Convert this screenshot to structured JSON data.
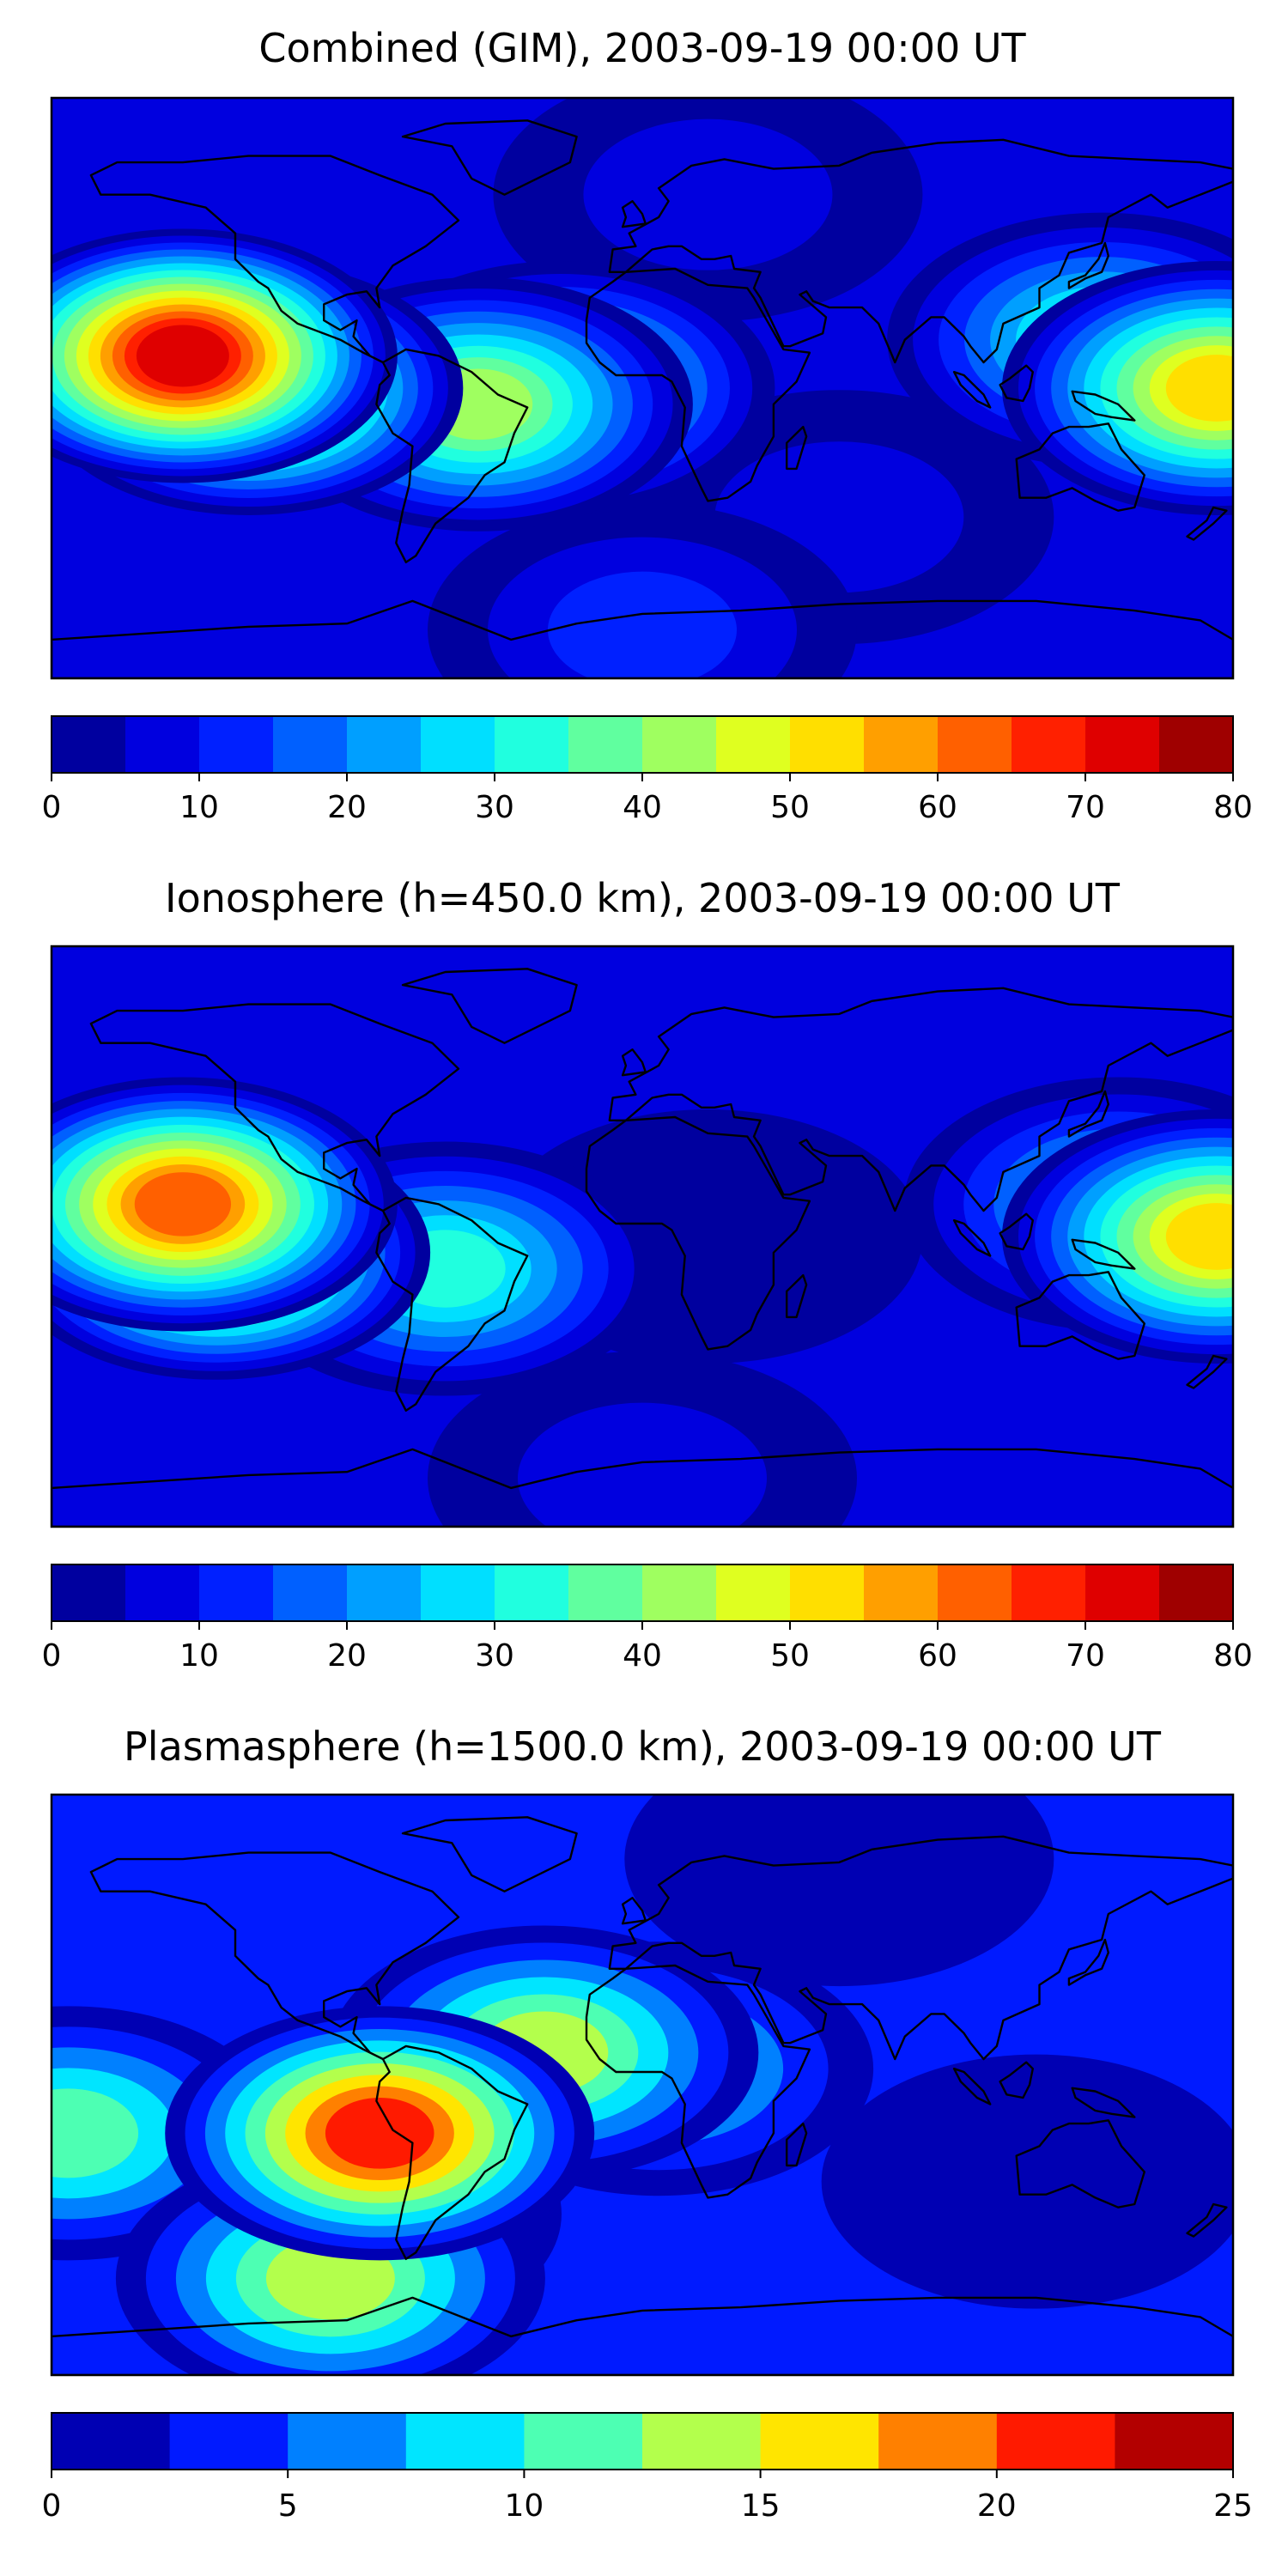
{
  "chart_data": [
    {
      "type": "heatmap",
      "title": "Combined (GIM), 2003-09-19 00:00 UT",
      "projection": "plate carree world map with coastlines",
      "lon_range": [
        -180,
        180
      ],
      "lat_range": [
        -90,
        90
      ],
      "colorbar": {
        "range": [
          0,
          80
        ],
        "levels": [
          0,
          5,
          10,
          15,
          20,
          25,
          30,
          35,
          40,
          45,
          50,
          55,
          60,
          65,
          70,
          75,
          80
        ],
        "tick_labels": [
          "0",
          "10",
          "20",
          "30",
          "40",
          "50",
          "60",
          "70",
          "80"
        ],
        "tick_values": [
          0,
          10,
          20,
          30,
          40,
          50,
          60,
          70,
          80
        ]
      },
      "features": [
        {
          "lon": -140,
          "lat": 10,
          "value": 72,
          "note": "peak over east Pacific"
        },
        {
          "lon": -120,
          "lat": 0,
          "value": 55
        },
        {
          "lon": -50,
          "lat": -5,
          "value": 42
        },
        {
          "lon": -25,
          "lat": 0,
          "value": 38
        },
        {
          "lon": 175,
          "lat": 0,
          "value": 52
        },
        {
          "lon": 140,
          "lat": 15,
          "value": 32
        },
        {
          "lon": 20,
          "lat": 60,
          "value": 7
        },
        {
          "lon": 60,
          "lat": -40,
          "value": 8
        },
        {
          "lon": 0,
          "lat": -75,
          "value": 12
        }
      ]
    },
    {
      "type": "heatmap",
      "title": "Ionosphere  (h=450.0 km), 2003-09-19 00:00 UT",
      "projection": "plate carree world map with coastlines",
      "lon_range": [
        -180,
        180
      ],
      "lat_range": [
        -90,
        90
      ],
      "colorbar": {
        "range": [
          0,
          80
        ],
        "levels": [
          0,
          5,
          10,
          15,
          20,
          25,
          30,
          35,
          40,
          45,
          50,
          55,
          60,
          65,
          70,
          75,
          80
        ],
        "tick_labels": [
          "0",
          "10",
          "20",
          "30",
          "40",
          "50",
          "60",
          "70",
          "80"
        ],
        "tick_values": [
          0,
          10,
          20,
          30,
          40,
          50,
          60,
          70,
          80
        ]
      },
      "features": [
        {
          "lon": -140,
          "lat": 10,
          "value": 62,
          "note": "peak over east Pacific"
        },
        {
          "lon": -130,
          "lat": -5,
          "value": 55
        },
        {
          "lon": -60,
          "lat": -10,
          "value": 30
        },
        {
          "lon": 175,
          "lat": 0,
          "value": 50
        },
        {
          "lon": 145,
          "lat": 10,
          "value": 28
        },
        {
          "lon": 20,
          "lat": 0,
          "value": 4
        },
        {
          "lon": 0,
          "lat": -75,
          "value": 6
        }
      ]
    },
    {
      "type": "heatmap",
      "title": "Plasmasphere (h=1500.0 km), 2003-09-19 00:00 UT",
      "projection": "plate carree world map with coastlines",
      "lon_range": [
        -180,
        180
      ],
      "lat_range": [
        -90,
        90
      ],
      "colorbar": {
        "range": [
          0,
          25
        ],
        "levels": [
          0,
          2.5,
          5,
          7.5,
          10,
          12.5,
          15,
          17.5,
          20,
          22.5,
          25
        ],
        "tick_labels": [
          "0",
          "5",
          "10",
          "15",
          "20",
          "25"
        ],
        "tick_values": [
          0,
          5,
          10,
          15,
          20,
          25
        ]
      },
      "features": [
        {
          "lon": -80,
          "lat": -15,
          "value": 21,
          "note": "peak over South America"
        },
        {
          "lon": -175,
          "lat": -15,
          "value": 12
        },
        {
          "lon": -30,
          "lat": 10,
          "value": 13
        },
        {
          "lon": 5,
          "lat": 5,
          "value": 9
        },
        {
          "lon": -90,
          "lat": -40,
          "value": 8
        },
        {
          "lon": -95,
          "lat": -60,
          "value": 14
        },
        {
          "lon": 120,
          "lat": -30,
          "value": 2
        },
        {
          "lon": 60,
          "lat": 70,
          "value": 1
        }
      ]
    }
  ]
}
